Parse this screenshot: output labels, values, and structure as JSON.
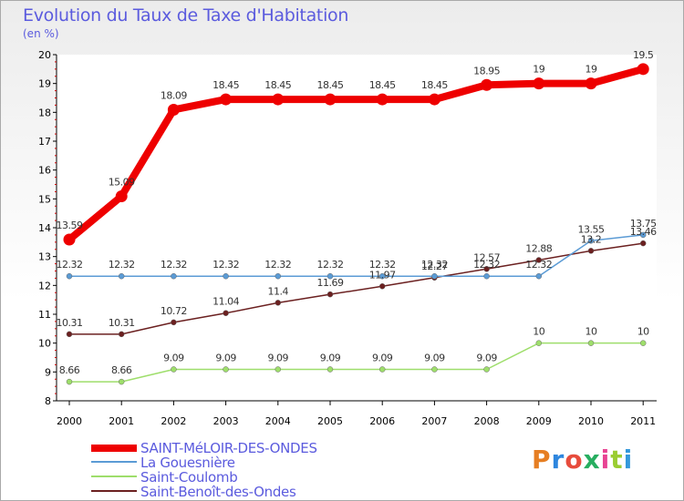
{
  "chart_data": {
    "type": "line",
    "title": "Evolution du Taux de Taxe d'Habitation",
    "ylabel": "(en %)",
    "xlabel": "",
    "ylim": [
      8,
      20
    ],
    "yticks": [
      "8",
      "9",
      "10",
      "11",
      "12",
      "13",
      "14",
      "15",
      "16",
      "17",
      "18",
      "19",
      "20"
    ],
    "categories": [
      "2000",
      "2001",
      "2002",
      "2003",
      "2004",
      "2005",
      "2006",
      "2007",
      "2008",
      "2009",
      "2010",
      "2011"
    ],
    "series": [
      {
        "name": "SAINT-MéLOIR-DES-ONDES",
        "color": "#ee0000",
        "values": [
          13.59,
          15.09,
          18.09,
          18.45,
          18.45,
          18.45,
          18.45,
          18.45,
          18.95,
          19,
          19,
          19.5
        ],
        "labels": [
          "13.59",
          "15.09",
          "18.09",
          "18.45",
          "18.45",
          "18.45",
          "18.45",
          "18.45",
          "18.95",
          "19",
          "19",
          "19.5"
        ]
      },
      {
        "name": "La Gouesnière",
        "color": "#5b9bd5",
        "values": [
          12.32,
          12.32,
          12.32,
          12.32,
          12.32,
          12.32,
          12.32,
          12.32,
          12.32,
          12.32,
          13.55,
          13.75
        ],
        "labels": [
          "12.32",
          "12.32",
          "12.32",
          "12.32",
          "12.32",
          "12.32",
          "12.32",
          "12.32",
          "12.32",
          "12.32",
          "13.55",
          "13.75"
        ]
      },
      {
        "name": "Saint-Coulomb",
        "color": "#9ede6b",
        "values": [
          8.66,
          8.66,
          9.09,
          9.09,
          9.09,
          9.09,
          9.09,
          9.09,
          9.09,
          10,
          10,
          10
        ],
        "labels": [
          "8.66",
          "8.66",
          "9.09",
          "9.09",
          "9.09",
          "9.09",
          "9.09",
          "9.09",
          "9.09",
          "10",
          "10",
          "10"
        ]
      },
      {
        "name": "Saint-Benoît-des-Ondes",
        "color": "#6b2020",
        "values": [
          10.31,
          10.31,
          10.72,
          11.04,
          11.4,
          11.69,
          11.97,
          12.27,
          12.57,
          12.88,
          13.2,
          13.46
        ],
        "labels": [
          "10.31",
          "10.31",
          "10.72",
          "11.04",
          "11.4",
          "11.69",
          "11.97",
          "12.27",
          "12.57",
          "12.88",
          "13.2",
          "13.46"
        ]
      }
    ]
  },
  "brand": {
    "text": "Proxiti"
  }
}
